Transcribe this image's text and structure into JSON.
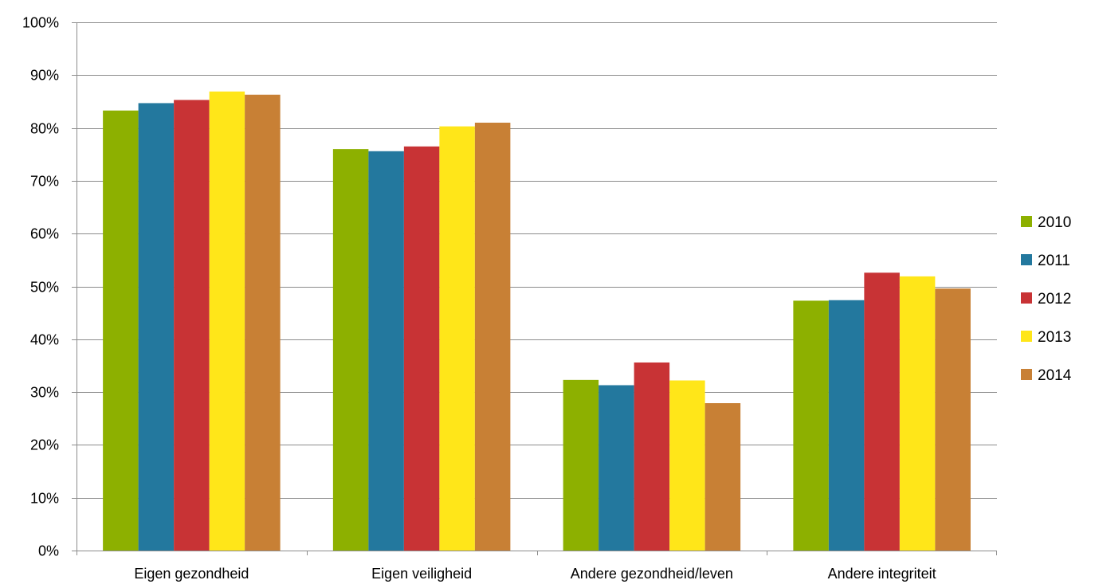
{
  "chart_data": {
    "type": "bar",
    "title": "",
    "xlabel": "",
    "ylabel": "",
    "ylim": [
      0,
      100
    ],
    "y_tick_step": 10,
    "y_tick_suffix": "%",
    "grid": true,
    "legend_position": "right",
    "categories": [
      "Eigen gezondheid",
      "Eigen veiligheid",
      "Andere gezondheid/leven",
      "Andere integriteit"
    ],
    "series": [
      {
        "name": "2010",
        "color": "#8db000",
        "values": [
          83.3,
          76.0,
          32.3,
          47.3
        ]
      },
      {
        "name": "2011",
        "color": "#23789e",
        "values": [
          84.7,
          75.6,
          31.3,
          47.4
        ]
      },
      {
        "name": "2012",
        "color": "#c83335",
        "values": [
          85.3,
          76.5,
          35.6,
          52.6
        ]
      },
      {
        "name": "2013",
        "color": "#ffe619",
        "values": [
          86.9,
          80.3,
          32.2,
          51.9
        ]
      },
      {
        "name": "2014",
        "color": "#c88035",
        "values": [
          86.3,
          81.0,
          27.9,
          49.6
        ]
      }
    ]
  }
}
